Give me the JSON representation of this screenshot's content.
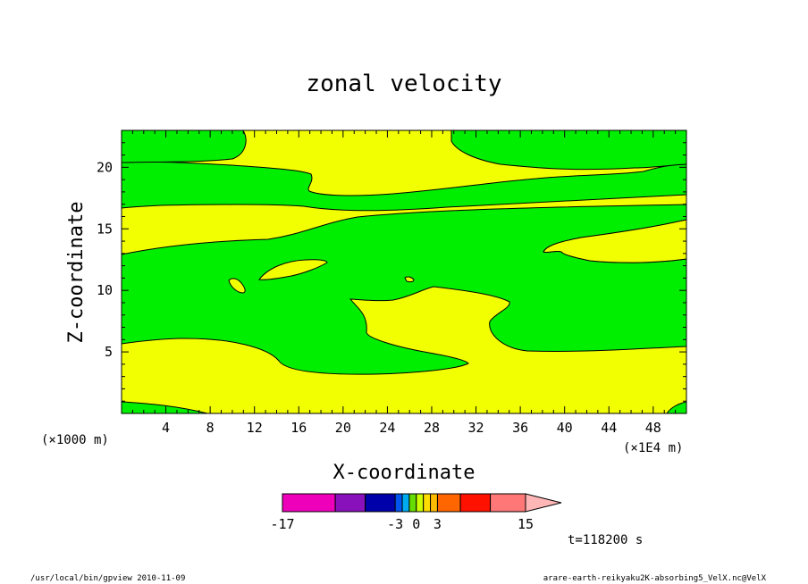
{
  "chart_data": {
    "type": "contour",
    "title": "zonal velocity",
    "xlabel": "X-coordinate",
    "ylabel": "Z-coordinate",
    "x_unit_left": "(×1000 m)",
    "x_unit_right": "(×1E4 m)",
    "xlim": [
      0,
      51
    ],
    "ylim": [
      0,
      23
    ],
    "x_ticks": [
      {
        "value": 4,
        "label": "4"
      },
      {
        "value": 8,
        "label": "8"
      },
      {
        "value": 12,
        "label": "12"
      },
      {
        "value": 16,
        "label": "16"
      },
      {
        "value": 20,
        "label": "20"
      },
      {
        "value": 24,
        "label": "24"
      },
      {
        "value": 28,
        "label": "28"
      },
      {
        "value": 32,
        "label": "32"
      },
      {
        "value": 36,
        "label": "36"
      },
      {
        "value": 40,
        "label": "40"
      },
      {
        "value": 44,
        "label": "44"
      },
      {
        "value": 48,
        "label": "48"
      }
    ],
    "y_ticks": [
      {
        "value": 5,
        "label": "5"
      },
      {
        "value": 10,
        "label": "10"
      },
      {
        "value": 15,
        "label": "15"
      },
      {
        "value": 20,
        "label": "20"
      }
    ],
    "fill_colors": {
      "positive": "#f2ff00",
      "negative": "#00ee00",
      "line": "#000000"
    },
    "colorbar": {
      "levels": [
        -17,
        -11,
        -7,
        -3,
        -2,
        -1,
        0,
        1,
        2,
        3,
        6,
        9,
        15
      ],
      "colors": [
        "#ee00bb",
        "#8811bb",
        "#0000aa",
        "#0055ee",
        "#00aaee",
        "#66dd00",
        "#ccff00",
        "#ffdd00",
        "#ffbb00",
        "#ff6600",
        "#ff1100",
        "#ff7777"
      ],
      "extend_color": "#ffb6b6",
      "tick_labels": [
        {
          "value": -17,
          "label": "-17"
        },
        {
          "value": -3,
          "label": "-3"
        },
        {
          "value": 0,
          "label": "0"
        },
        {
          "value": 3,
          "label": "3"
        },
        {
          "value": 15,
          "label": "15"
        }
      ]
    },
    "time_label": "t=118200 s"
  },
  "footer": {
    "left": "/usr/local/bin/gpview   2010-11-09",
    "right": "arare-earth-reikyaku2K-absorbing5_VelX.nc@VelX"
  }
}
